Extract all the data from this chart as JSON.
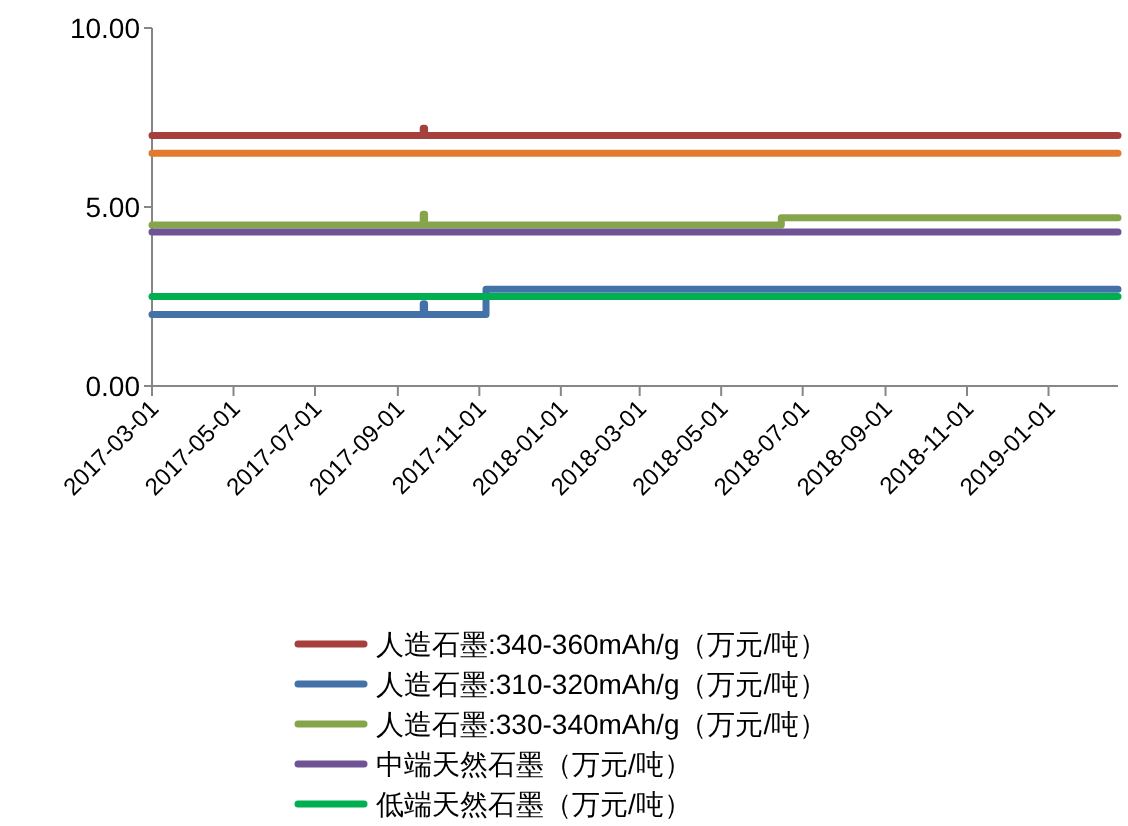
{
  "chart_data": {
    "type": "step",
    "xlim": [
      "2017-03-01",
      "2019-02-22"
    ],
    "ylim": [
      0,
      10
    ],
    "yticks": [
      {
        "value": 0,
        "label": "0.00"
      },
      {
        "value": 5,
        "label": "5.00"
      },
      {
        "value": 10,
        "label": "10.00"
      }
    ],
    "xticks": [
      {
        "value": "2017-03-01",
        "label": "2017-03-01"
      },
      {
        "value": "2017-05-01",
        "label": "2017-05-01"
      },
      {
        "value": "2017-07-01",
        "label": "2017-07-01"
      },
      {
        "value": "2017-09-01",
        "label": "2017-09-01"
      },
      {
        "value": "2017-11-01",
        "label": "2017-11-01"
      },
      {
        "value": "2018-01-01",
        "label": "2018-01-01"
      },
      {
        "value": "2018-03-01",
        "label": "2018-03-01"
      },
      {
        "value": "2018-05-01",
        "label": "2018-05-01"
      },
      {
        "value": "2018-07-01",
        "label": "2018-07-01"
      },
      {
        "value": "2018-09-01",
        "label": "2018-09-01"
      },
      {
        "value": "2018-11-01",
        "label": "2018-11-01"
      },
      {
        "value": "2019-01-01",
        "label": "2019-01-01"
      }
    ],
    "grid": false,
    "legend": "bottom",
    "line_style": "solid",
    "marker": "none",
    "series": [
      {
        "name": "人造石墨:340-360mAh/g（万元/吨）",
        "color": "#a5403d",
        "x": [
          "2017-03-01",
          "2017-09-19",
          "2017-09-20",
          "2017-09-21",
          "2019-02-22"
        ],
        "values": [
          7.0,
          7.0,
          7.2,
          7.0,
          7.0
        ]
      },
      {
        "color": "#e07b2f",
        "x": [
          "2017-03-01",
          "2019-02-22"
        ],
        "values": [
          6.5,
          6.5
        ]
      },
      {
        "name": "人造石墨:310-320mAh/g（万元/吨）",
        "color": "#4372a8",
        "x": [
          "2017-03-01",
          "2017-09-19",
          "2017-09-20",
          "2017-09-21",
          "2017-11-06",
          "2019-02-22"
        ],
        "values": [
          2.0,
          2.0,
          2.3,
          2.0,
          2.7,
          2.7
        ]
      },
      {
        "name": "人造石墨:330-340mAh/g（万元/吨）",
        "color": "#86a44a",
        "x": [
          "2017-03-01",
          "2017-09-19",
          "2017-09-20",
          "2017-09-21",
          "2018-06-15",
          "2019-02-22"
        ],
        "values": [
          4.5,
          4.5,
          4.8,
          4.5,
          4.7,
          4.7
        ]
      },
      {
        "name": "中端天然石墨（万元/吨）",
        "color": "#6f5395",
        "x": [
          "2017-03-01",
          "2019-02-22"
        ],
        "values": [
          4.3,
          4.3
        ]
      },
      {
        "name": "低端天然石墨（万元/吨）",
        "color": "#00b050",
        "x": [
          "2017-03-01",
          "2019-02-22"
        ],
        "values": [
          2.5,
          2.5
        ]
      }
    ]
  }
}
